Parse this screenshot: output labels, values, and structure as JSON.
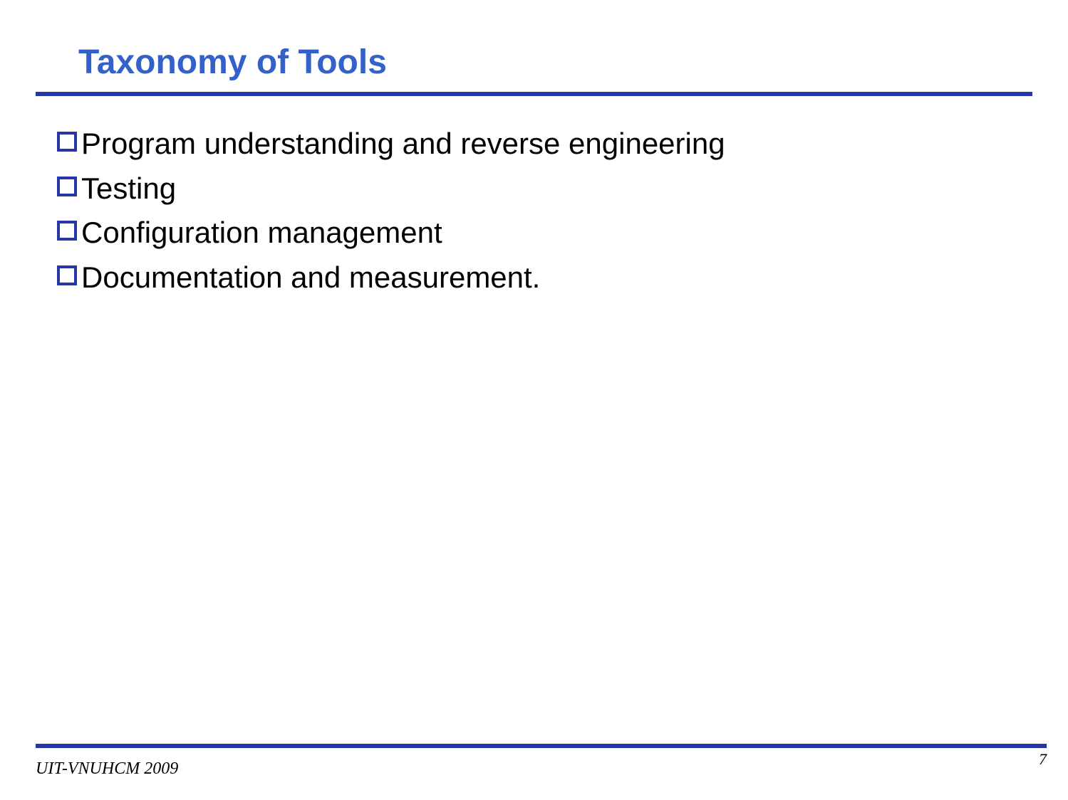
{
  "slide": {
    "title": "Taxonomy of Tools",
    "bullets": [
      "Program understanding and reverse engineering",
      "Testing",
      "Configuration management",
      "Documentation and measurement."
    ],
    "footer": "UIT-VNUHCM 2009",
    "pageNumber": "7"
  },
  "styling": {
    "titleColor": "#3461c9",
    "dividerColor": "#2636a8",
    "bulletBorderColor": "#2636a8",
    "textColor": "#000000",
    "backgroundColor": "#ffffff",
    "titleFontSize": 48,
    "bulletFontSize": 42,
    "footerFontSize": 24,
    "pageNumberFontSize": 22
  }
}
